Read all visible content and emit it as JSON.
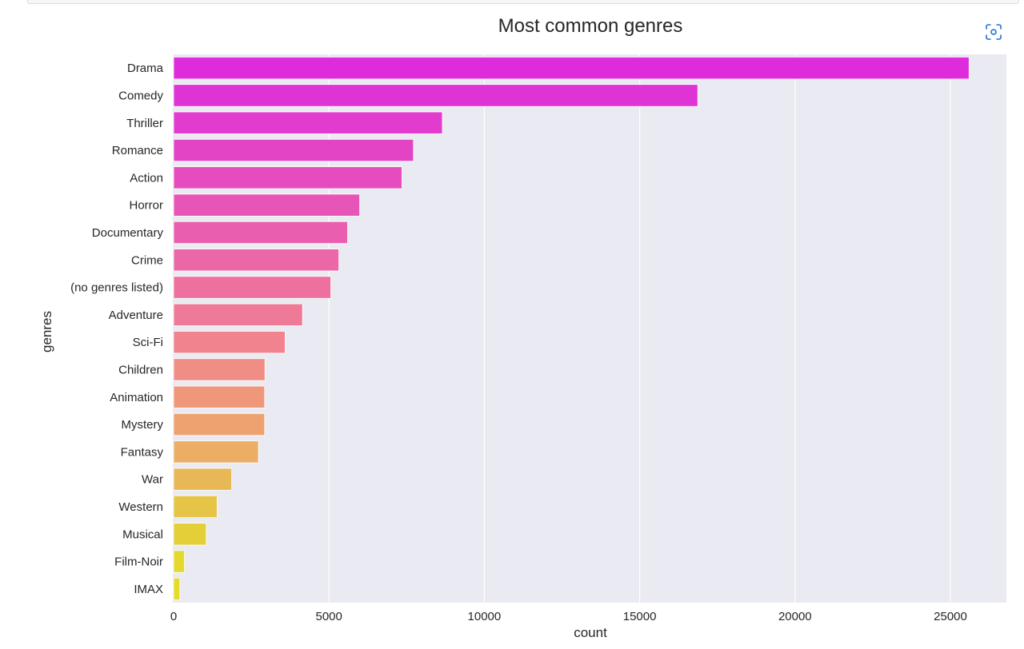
{
  "toolbar": {
    "fullscreen_icon": "focus-frame-icon",
    "accent_color": "#1e6fd9"
  },
  "chart_data": {
    "type": "bar",
    "orientation": "horizontal",
    "title": "Most common genres",
    "xlabel": "count",
    "ylabel": "genres",
    "xlim": [
      0,
      27000
    ],
    "xticks": [
      0,
      5000,
      10000,
      15000,
      20000,
      25000
    ],
    "grid": true,
    "background": "#eaeaf2",
    "categories": [
      "Drama",
      "Comedy",
      "Thriller",
      "Romance",
      "Action",
      "Horror",
      "Documentary",
      "Crime",
      "(no genres listed)",
      "Adventure",
      "Sci-Fi",
      "Children",
      "Animation",
      "Mystery",
      "Fantasy",
      "War",
      "Western",
      "Musical",
      "Film-Noir",
      "IMAX"
    ],
    "values": [
      25600,
      16870,
      8650,
      7720,
      7350,
      5990,
      5600,
      5320,
      5060,
      4150,
      3590,
      2940,
      2930,
      2930,
      2730,
      1870,
      1400,
      1050,
      350,
      200
    ],
    "colors": [
      "#de2bdc",
      "#df33d5",
      "#e13ccd",
      "#e344c6",
      "#e54dbe",
      "#e755b7",
      "#e95eaf",
      "#eb67a7",
      "#ed709f",
      "#ef7a97",
      "#f0838e",
      "#f08d85",
      "#ef977b",
      "#eea270",
      "#ecad64",
      "#e9b856",
      "#e6c447",
      "#e4cf38",
      "#e3d92e",
      "#e3dc2a"
    ]
  }
}
